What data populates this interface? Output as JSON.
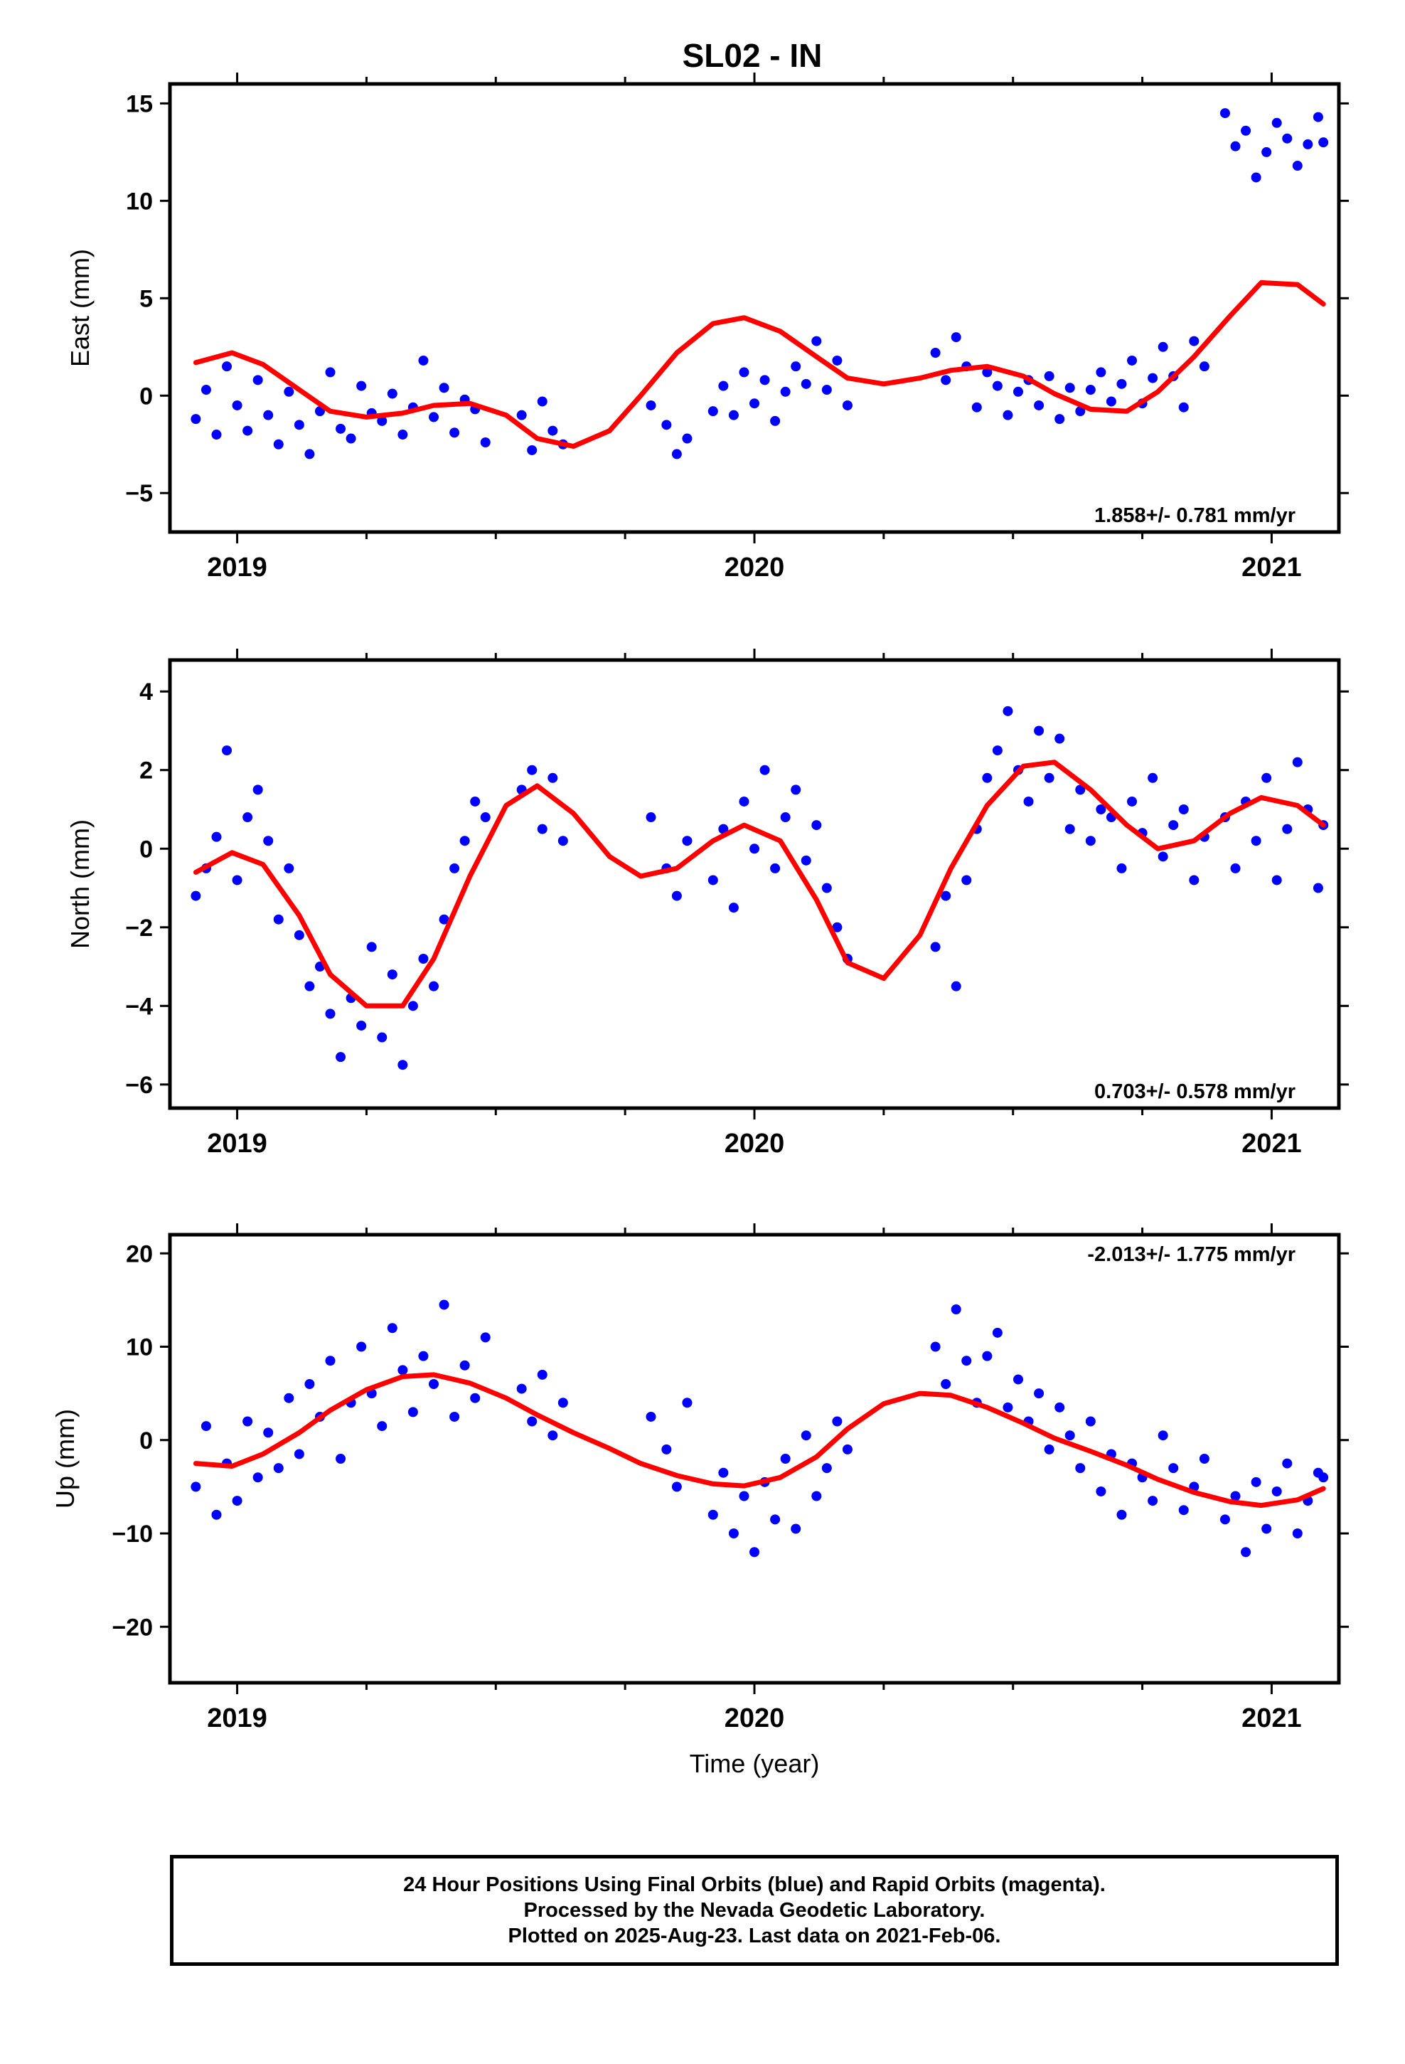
{
  "title": "SL02 - IN",
  "colors": {
    "points": "#0000ff",
    "fit": "#ff0000",
    "axes": "#000000"
  },
  "xlabel": "Time (year)",
  "footer": {
    "line1": "24 Hour Positions Using Final Orbits (blue) and Rapid Orbits (magenta).",
    "line2": "Processed by the Nevada Geodetic Laboratory.",
    "line3": "Plotted on 2025-Aug-23. Last data on 2021-Feb-06."
  },
  "chart_data": [
    {
      "type": "scatter",
      "ylabel": "East (mm)",
      "rate_label": "1.858+/- 0.781 mm/yr",
      "rate_position": "bottom-right",
      "xlim": [
        2018.87,
        2021.13
      ],
      "ylim": [
        -7,
        16
      ],
      "x_ticks": [
        2019,
        2020,
        2021
      ],
      "y_ticks": [
        -5,
        0,
        5,
        10,
        15
      ],
      "series": [
        {
          "kind": "points",
          "x": [
            2018.92,
            2018.94,
            2018.96,
            2018.98,
            2019.0,
            2019.02,
            2019.04,
            2019.06,
            2019.08,
            2019.1,
            2019.12,
            2019.14,
            2019.16,
            2019.18,
            2019.2,
            2019.22,
            2019.24,
            2019.26,
            2019.28,
            2019.3,
            2019.32,
            2019.34,
            2019.36,
            2019.38,
            2019.4,
            2019.42,
            2019.44,
            2019.46,
            2019.48,
            2019.55,
            2019.57,
            2019.59,
            2019.61,
            2019.63,
            2019.8,
            2019.83,
            2019.85,
            2019.87,
            2019.92,
            2019.94,
            2019.96,
            2019.98,
            2020.0,
            2020.02,
            2020.04,
            2020.06,
            2020.08,
            2020.1,
            2020.12,
            2020.14,
            2020.16,
            2020.18,
            2020.35,
            2020.37,
            2020.39,
            2020.41,
            2020.43,
            2020.45,
            2020.47,
            2020.49,
            2020.51,
            2020.53,
            2020.55,
            2020.57,
            2020.59,
            2020.61,
            2020.63,
            2020.65,
            2020.67,
            2020.69,
            2020.71,
            2020.73,
            2020.75,
            2020.77,
            2020.79,
            2020.81,
            2020.83,
            2020.85,
            2020.87,
            2020.91,
            2020.93,
            2020.95,
            2020.97,
            2020.99,
            2021.01,
            2021.03,
            2021.05,
            2021.07,
            2021.09,
            2021.1
          ],
          "y": [
            -1.2,
            0.3,
            -2.0,
            1.5,
            -0.5,
            -1.8,
            0.8,
            -1.0,
            -2.5,
            0.2,
            -1.5,
            -3.0,
            -0.8,
            1.2,
            -1.7,
            -2.2,
            0.5,
            -0.9,
            -1.3,
            0.1,
            -2.0,
            -0.6,
            1.8,
            -1.1,
            0.4,
            -1.9,
            -0.2,
            -0.7,
            -2.4,
            -1.0,
            -2.8,
            -0.3,
            -1.8,
            -2.5,
            -0.5,
            -1.5,
            -3.0,
            -2.2,
            -0.8,
            0.5,
            -1.0,
            1.2,
            -0.4,
            0.8,
            -1.3,
            0.2,
            1.5,
            0.6,
            2.8,
            0.3,
            1.8,
            -0.5,
            2.2,
            0.8,
            3.0,
            1.5,
            -0.6,
            1.2,
            0.5,
            -1.0,
            0.2,
            0.8,
            -0.5,
            1.0,
            -1.2,
            0.4,
            -0.8,
            0.3,
            1.2,
            -0.3,
            0.6,
            1.8,
            -0.4,
            0.9,
            2.5,
            1.0,
            -0.6,
            2.8,
            1.5,
            14.5,
            12.8,
            13.6,
            11.2,
            12.5,
            14.0,
            13.2,
            11.8,
            12.9,
            14.3,
            13.0
          ]
        },
        {
          "kind": "fit",
          "x": [
            2018.92,
            2018.99,
            2019.05,
            2019.12,
            2019.18,
            2019.25,
            2019.32,
            2019.38,
            2019.45,
            2019.52,
            2019.58,
            2019.65,
            2019.72,
            2019.78,
            2019.85,
            2019.92,
            2019.98,
            2020.05,
            2020.12,
            2020.18,
            2020.25,
            2020.32,
            2020.38,
            2020.45,
            2020.52,
            2020.58,
            2020.65,
            2020.72,
            2020.78,
            2020.85,
            2020.92,
            2020.98,
            2021.05,
            2021.1
          ],
          "y": [
            1.7,
            2.2,
            1.6,
            0.3,
            -0.8,
            -1.1,
            -0.9,
            -0.5,
            -0.4,
            -1.0,
            -2.2,
            -2.6,
            -1.8,
            0.0,
            2.2,
            3.7,
            4.0,
            3.3,
            2.0,
            0.9,
            0.6,
            0.9,
            1.3,
            1.5,
            1.0,
            0.1,
            -0.7,
            -0.8,
            0.2,
            2.0,
            4.1,
            5.8,
            5.7,
            4.7
          ]
        }
      ]
    },
    {
      "type": "scatter",
      "ylabel": "North (mm)",
      "rate_label": "0.703+/- 0.578 mm/yr",
      "rate_position": "bottom-right",
      "xlim": [
        2018.87,
        2021.13
      ],
      "ylim": [
        -6.6,
        4.8
      ],
      "x_ticks": [
        2019,
        2020,
        2021
      ],
      "y_ticks": [
        -6,
        -4,
        -2,
        0,
        2,
        4
      ],
      "series": [
        {
          "kind": "points",
          "x": [
            2018.92,
            2018.94,
            2018.96,
            2018.98,
            2019.0,
            2019.02,
            2019.04,
            2019.06,
            2019.08,
            2019.1,
            2019.12,
            2019.14,
            2019.16,
            2019.18,
            2019.2,
            2019.22,
            2019.24,
            2019.26,
            2019.28,
            2019.3,
            2019.32,
            2019.34,
            2019.36,
            2019.38,
            2019.4,
            2019.42,
            2019.44,
            2019.46,
            2019.48,
            2019.55,
            2019.57,
            2019.59,
            2019.61,
            2019.63,
            2019.8,
            2019.83,
            2019.85,
            2019.87,
            2019.92,
            2019.94,
            2019.96,
            2019.98,
            2020.0,
            2020.02,
            2020.04,
            2020.06,
            2020.08,
            2020.1,
            2020.12,
            2020.14,
            2020.16,
            2020.18,
            2020.35,
            2020.37,
            2020.39,
            2020.41,
            2020.43,
            2020.45,
            2020.47,
            2020.49,
            2020.51,
            2020.53,
            2020.55,
            2020.57,
            2020.59,
            2020.61,
            2020.63,
            2020.65,
            2020.67,
            2020.69,
            2020.71,
            2020.73,
            2020.75,
            2020.77,
            2020.79,
            2020.81,
            2020.83,
            2020.85,
            2020.87,
            2020.91,
            2020.93,
            2020.95,
            2020.97,
            2020.99,
            2021.01,
            2021.03,
            2021.05,
            2021.07,
            2021.09,
            2021.1
          ],
          "y": [
            -1.2,
            -0.5,
            0.3,
            2.5,
            -0.8,
            0.8,
            1.5,
            0.2,
            -1.8,
            -0.5,
            -2.2,
            -3.5,
            -3.0,
            -4.2,
            -5.3,
            -3.8,
            -4.5,
            -2.5,
            -4.8,
            -3.2,
            -5.5,
            -4.0,
            -2.8,
            -3.5,
            -1.8,
            -0.5,
            0.2,
            1.2,
            0.8,
            1.5,
            2.0,
            0.5,
            1.8,
            0.2,
            0.8,
            -0.5,
            -1.2,
            0.2,
            -0.8,
            0.5,
            -1.5,
            1.2,
            0.0,
            2.0,
            -0.5,
            0.8,
            1.5,
            -0.3,
            0.6,
            -1.0,
            -2.0,
            -2.8,
            -2.5,
            -1.2,
            -3.5,
            -0.8,
            0.5,
            1.8,
            2.5,
            3.5,
            2.0,
            1.2,
            3.0,
            1.8,
            2.8,
            0.5,
            1.5,
            0.2,
            1.0,
            0.8,
            -0.5,
            1.2,
            0.4,
            1.8,
            -0.2,
            0.6,
            1.0,
            -0.8,
            0.3,
            0.8,
            -0.5,
            1.2,
            0.2,
            1.8,
            -0.8,
            0.5,
            2.2,
            1.0,
            -1.0,
            0.6
          ]
        },
        {
          "kind": "fit",
          "x": [
            2018.92,
            2018.99,
            2019.05,
            2019.12,
            2019.18,
            2019.25,
            2019.32,
            2019.38,
            2019.45,
            2019.52,
            2019.58,
            2019.65,
            2019.72,
            2019.78,
            2019.85,
            2019.92,
            2019.98,
            2020.05,
            2020.12,
            2020.18,
            2020.25,
            2020.32,
            2020.38,
            2020.45,
            2020.52,
            2020.58,
            2020.65,
            2020.72,
            2020.78,
            2020.85,
            2020.92,
            2020.98,
            2021.05,
            2021.1
          ],
          "y": [
            -0.6,
            -0.1,
            -0.4,
            -1.7,
            -3.2,
            -4.0,
            -4.0,
            -2.8,
            -0.7,
            1.1,
            1.6,
            0.9,
            -0.2,
            -0.7,
            -0.5,
            0.2,
            0.6,
            0.2,
            -1.3,
            -2.9,
            -3.3,
            -2.2,
            -0.5,
            1.1,
            2.1,
            2.2,
            1.5,
            0.6,
            0.0,
            0.2,
            0.9,
            1.3,
            1.1,
            0.6
          ]
        }
      ]
    },
    {
      "type": "scatter",
      "ylabel": "Up (mm)",
      "rate_label": "-2.013+/- 1.775 mm/yr",
      "rate_position": "top-right",
      "xlim": [
        2018.87,
        2021.13
      ],
      "ylim": [
        -26,
        22
      ],
      "x_ticks": [
        2019,
        2020,
        2021
      ],
      "y_ticks": [
        -20,
        -10,
        0,
        10,
        20
      ],
      "series": [
        {
          "kind": "points",
          "x": [
            2018.92,
            2018.94,
            2018.96,
            2018.98,
            2019.0,
            2019.02,
            2019.04,
            2019.06,
            2019.08,
            2019.1,
            2019.12,
            2019.14,
            2019.16,
            2019.18,
            2019.2,
            2019.22,
            2019.24,
            2019.26,
            2019.28,
            2019.3,
            2019.32,
            2019.34,
            2019.36,
            2019.38,
            2019.4,
            2019.42,
            2019.44,
            2019.46,
            2019.48,
            2019.55,
            2019.57,
            2019.59,
            2019.61,
            2019.63,
            2019.8,
            2019.83,
            2019.85,
            2019.87,
            2019.92,
            2019.94,
            2019.96,
            2019.98,
            2020.0,
            2020.02,
            2020.04,
            2020.06,
            2020.08,
            2020.1,
            2020.12,
            2020.14,
            2020.16,
            2020.18,
            2020.35,
            2020.37,
            2020.39,
            2020.41,
            2020.43,
            2020.45,
            2020.47,
            2020.49,
            2020.51,
            2020.53,
            2020.55,
            2020.57,
            2020.59,
            2020.61,
            2020.63,
            2020.65,
            2020.67,
            2020.69,
            2020.71,
            2020.73,
            2020.75,
            2020.77,
            2020.79,
            2020.81,
            2020.83,
            2020.85,
            2020.87,
            2020.91,
            2020.93,
            2020.95,
            2020.97,
            2020.99,
            2021.01,
            2021.03,
            2021.05,
            2021.07,
            2021.09,
            2021.1
          ],
          "y": [
            -5.0,
            1.5,
            -8.0,
            -2.5,
            -6.5,
            2.0,
            -4.0,
            0.8,
            -3.0,
            4.5,
            -1.5,
            6.0,
            2.5,
            8.5,
            -2.0,
            4.0,
            10.0,
            5.0,
            1.5,
            12.0,
            7.5,
            3.0,
            9.0,
            6.0,
            14.5,
            2.5,
            8.0,
            4.5,
            11.0,
            5.5,
            2.0,
            7.0,
            0.5,
            4.0,
            2.5,
            -1.0,
            -5.0,
            4.0,
            -8.0,
            -3.5,
            -10.0,
            -6.0,
            -12.0,
            -4.5,
            -8.5,
            -2.0,
            -9.5,
            0.5,
            -6.0,
            -3.0,
            2.0,
            -1.0,
            10.0,
            6.0,
            14.0,
            8.5,
            4.0,
            9.0,
            11.5,
            3.5,
            6.5,
            2.0,
            5.0,
            -1.0,
            3.5,
            0.5,
            -3.0,
            2.0,
            -5.5,
            -1.5,
            -8.0,
            -2.5,
            -4.0,
            -6.5,
            0.5,
            -3.0,
            -7.5,
            -5.0,
            -2.0,
            -8.5,
            -6.0,
            -12.0,
            -4.5,
            -9.5,
            -5.5,
            -2.5,
            -10.0,
            -6.5,
            -3.5,
            -4.0
          ]
        },
        {
          "kind": "fit",
          "x": [
            2018.92,
            2018.99,
            2019.05,
            2019.12,
            2019.18,
            2019.25,
            2019.32,
            2019.38,
            2019.45,
            2019.52,
            2019.58,
            2019.65,
            2019.72,
            2019.78,
            2019.85,
            2019.92,
            2019.98,
            2020.05,
            2020.12,
            2020.18,
            2020.25,
            2020.32,
            2020.38,
            2020.45,
            2020.52,
            2020.58,
            2020.65,
            2020.72,
            2020.78,
            2020.85,
            2020.92,
            2020.98,
            2021.05,
            2021.1
          ],
          "y": [
            -2.5,
            -2.8,
            -1.5,
            0.8,
            3.2,
            5.4,
            6.8,
            7.0,
            6.1,
            4.5,
            2.7,
            0.8,
            -0.9,
            -2.5,
            -3.8,
            -4.7,
            -4.9,
            -4.0,
            -1.8,
            1.2,
            3.9,
            5.0,
            4.8,
            3.5,
            1.8,
            0.2,
            -1.2,
            -2.7,
            -4.2,
            -5.6,
            -6.6,
            -7.0,
            -6.4,
            -5.2
          ]
        }
      ]
    }
  ]
}
